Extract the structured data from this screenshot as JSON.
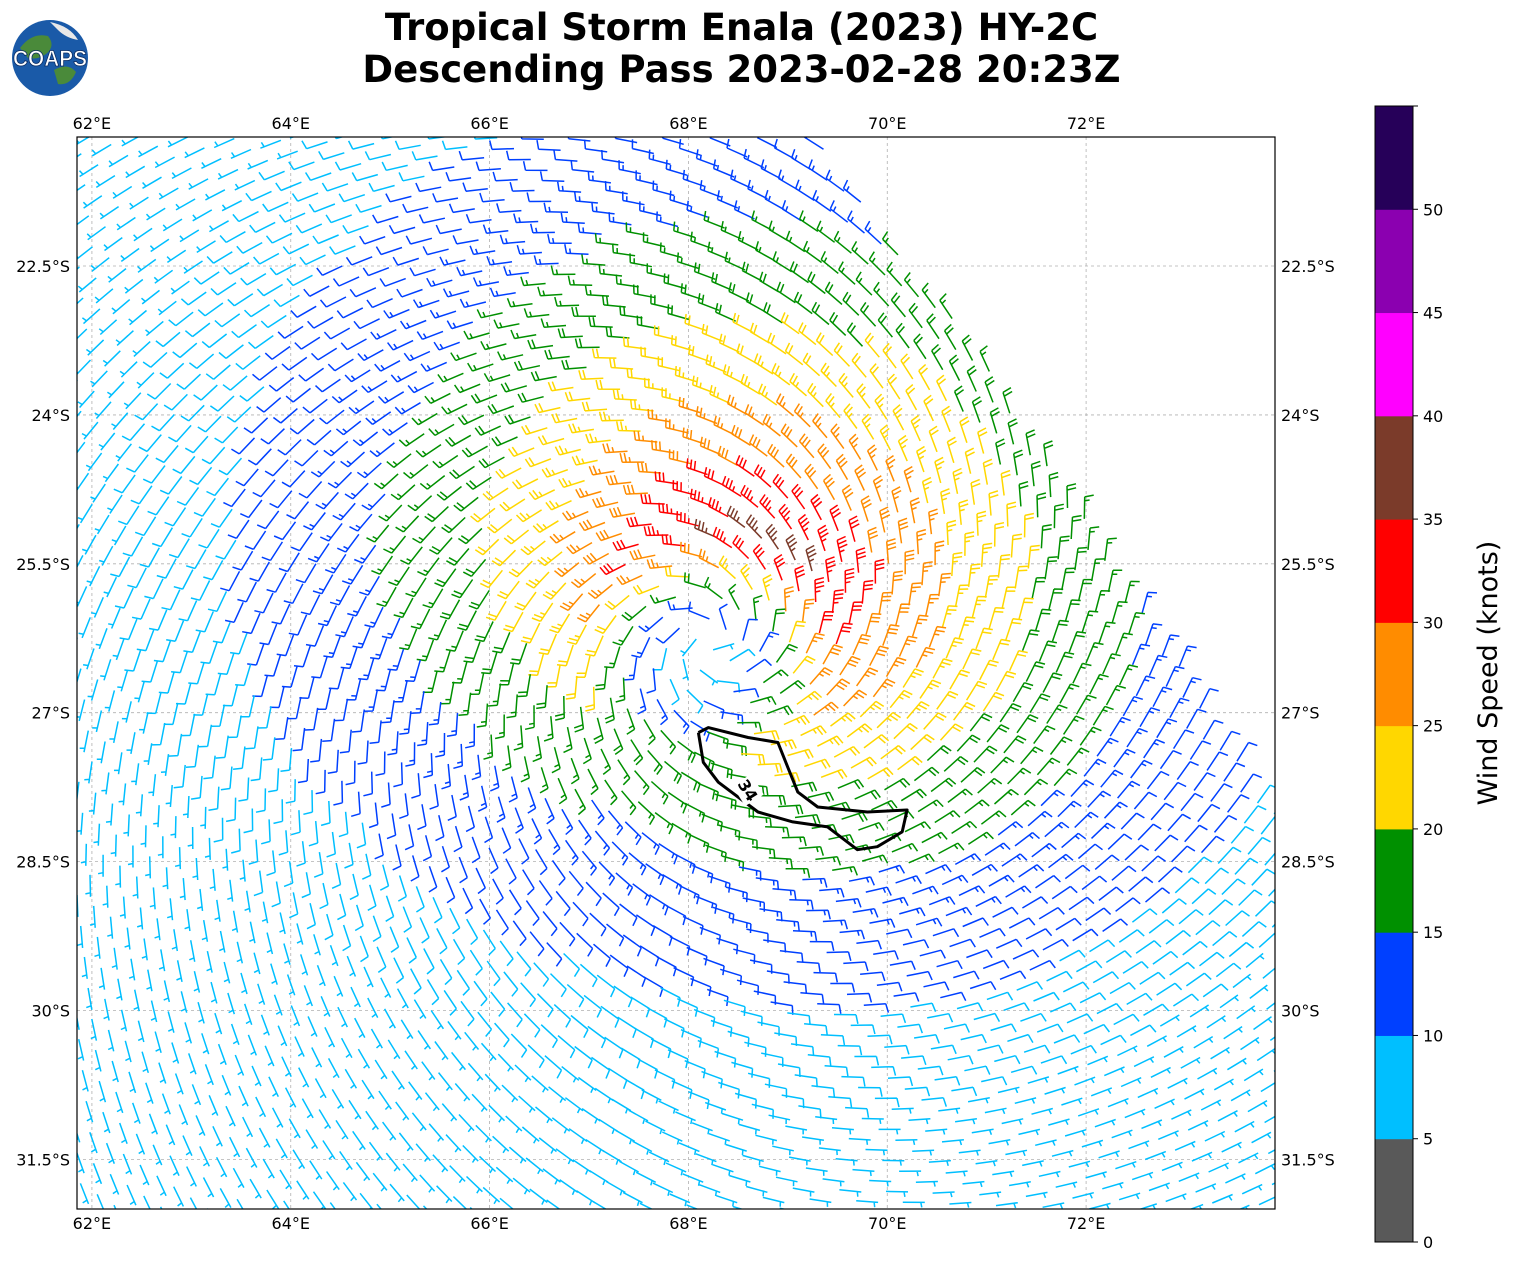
{
  "header": {
    "logo_text": "COAPS",
    "title_line1": "Tropical Storm Enala (2023) HY-2C",
    "title_line2": "Descending Pass 2023-02-28 20:23Z"
  },
  "chart_data": {
    "type": "wind-barb map",
    "title": "Tropical Storm Enala (2023) HY-2C Descending Pass 2023-02-28 20:23Z",
    "x_ticks": [
      "62°E",
      "64°E",
      "66°E",
      "68°E",
      "70°E",
      "72°E"
    ],
    "x_tick_values": [
      62,
      64,
      66,
      68,
      70,
      72
    ],
    "y_ticks": [
      "22.5°S",
      "24°S",
      "25.5°S",
      "27°S",
      "28.5°S",
      "30°S",
      "31.5°S"
    ],
    "y_tick_values": [
      -22.5,
      -24,
      -25.5,
      -27,
      -28.5,
      -30,
      -31.5
    ],
    "xlim": [
      61.85,
      73.9
    ],
    "ylim": [
      -32.0,
      -21.2
    ],
    "grid": true,
    "storm_center": {
      "lon": 68.2,
      "lat": -26.3
    },
    "swath_edge": [
      [
        69.3,
        -21.2
      ],
      [
        71.0,
        -23.5
      ],
      [
        73.9,
        -28.0
      ]
    ],
    "wind_field": {
      "type": "cyclonic (clockwise, southern hemisphere)",
      "max_speed_kt": 37,
      "radius_of_max_wind_deg": 1.1,
      "max_wind_bearing_deg": 150
    },
    "contour": {
      "label": "34",
      "level_kt": 34,
      "path": [
        [
          68.1,
          -27.2
        ],
        [
          68.2,
          -27.15
        ],
        [
          68.6,
          -27.25
        ],
        [
          68.9,
          -27.3
        ],
        [
          69.0,
          -27.55
        ],
        [
          69.1,
          -27.8
        ],
        [
          69.3,
          -27.95
        ],
        [
          69.8,
          -28.0
        ],
        [
          70.2,
          -27.98
        ],
        [
          70.15,
          -28.2
        ],
        [
          69.9,
          -28.35
        ],
        [
          69.7,
          -28.38
        ],
        [
          69.4,
          -28.15
        ],
        [
          69.05,
          -28.1
        ],
        [
          68.7,
          -28.0
        ],
        [
          68.3,
          -27.7
        ],
        [
          68.15,
          -27.5
        ],
        [
          68.1,
          -27.2
        ]
      ],
      "label_lon": 68.6,
      "label_lat": -27.78
    },
    "colorbar": {
      "label": "Wind Speed (knots)",
      "ticks": [
        "0",
        "5",
        "10",
        "15",
        "20",
        "25",
        "30",
        "35",
        "40",
        "45",
        "50"
      ],
      "boundaries": [
        0,
        5,
        10,
        15,
        20,
        25,
        30,
        35,
        40,
        45,
        50,
        55
      ],
      "colors": [
        "#595959",
        "#00bfff",
        "#0040ff",
        "#009000",
        "#ffd700",
        "#ff8c00",
        "#ff0000",
        "#7b3b2a",
        "#ff00ff",
        "#8b00b0",
        "#260059"
      ]
    }
  }
}
